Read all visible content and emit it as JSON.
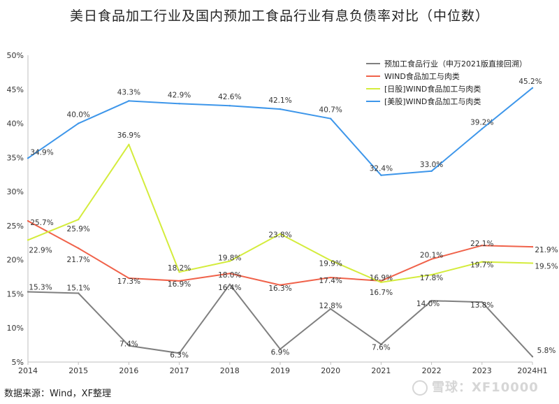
{
  "source_note": "数据来源：Wind，XF整理",
  "watermark": "雪球：XF10000",
  "chart_data": {
    "type": "line",
    "title": "美日食品加工行业及国内预加工食品行业有息负债率对比（中位数）",
    "x": [
      "2014",
      "2015",
      "2016",
      "2017",
      "2018",
      "2019",
      "2020",
      "2021",
      "2022",
      "2023",
      "2024H1"
    ],
    "ylim": [
      5,
      50
    ],
    "yticks": [
      "5%",
      "10%",
      "15%",
      "20%",
      "25%",
      "30%",
      "35%",
      "40%",
      "45%",
      "50%"
    ],
    "grid": false,
    "legend_position": "top-right",
    "series": [
      {
        "name": "预加工食品行业（申万2021版直接回溯）",
        "color": "#7f7f7f",
        "values": [
          15.3,
          15.1,
          7.4,
          6.3,
          16.4,
          6.9,
          12.8,
          7.6,
          14.0,
          13.8,
          5.8
        ],
        "labels": [
          "15.3%",
          "15.1%",
          "7.4%",
          "6.3%",
          "16.4%",
          "6.9%",
          "12.8%",
          "7.6%",
          "14.0%",
          "13.8%",
          "5.8%"
        ]
      },
      {
        "name": "WIND食品加工与肉类",
        "color": "#f0624a",
        "values": [
          25.7,
          21.7,
          17.3,
          16.9,
          18.0,
          16.3,
          17.4,
          16.9,
          20.1,
          22.1,
          21.9
        ],
        "labels": [
          "25.7%",
          "21.7%",
          "17.3%",
          "16.9%",
          "18.0%",
          "16.3%",
          "17.4%",
          "16.9%",
          "20.1%",
          "22.1%",
          "21.9%"
        ]
      },
      {
        "name": "[日股]WIND食品加工与肉类",
        "color": "#d4ec3c",
        "values": [
          22.9,
          25.9,
          36.9,
          18.2,
          19.8,
          23.8,
          19.9,
          16.7,
          17.8,
          19.7,
          19.5
        ],
        "labels": [
          "22.9%",
          "25.9%",
          "36.9%",
          "18.2%",
          "19.8%",
          "23.8%",
          "19.9%",
          "16.7%",
          "17.8%",
          "19.7%",
          "19.5%"
        ]
      },
      {
        "name": "[美股]WIND食品加工与肉类",
        "color": "#3d96ea",
        "values": [
          34.9,
          40.0,
          43.3,
          42.9,
          42.6,
          42.1,
          40.7,
          32.4,
          33.0,
          39.2,
          45.2
        ],
        "labels": [
          "34.9%",
          "40.0%",
          "43.3%",
          "42.9%",
          "42.6%",
          "42.1%",
          "40.7%",
          "32.4%",
          "33.0%",
          "39.2%",
          "45.2%"
        ]
      }
    ]
  }
}
